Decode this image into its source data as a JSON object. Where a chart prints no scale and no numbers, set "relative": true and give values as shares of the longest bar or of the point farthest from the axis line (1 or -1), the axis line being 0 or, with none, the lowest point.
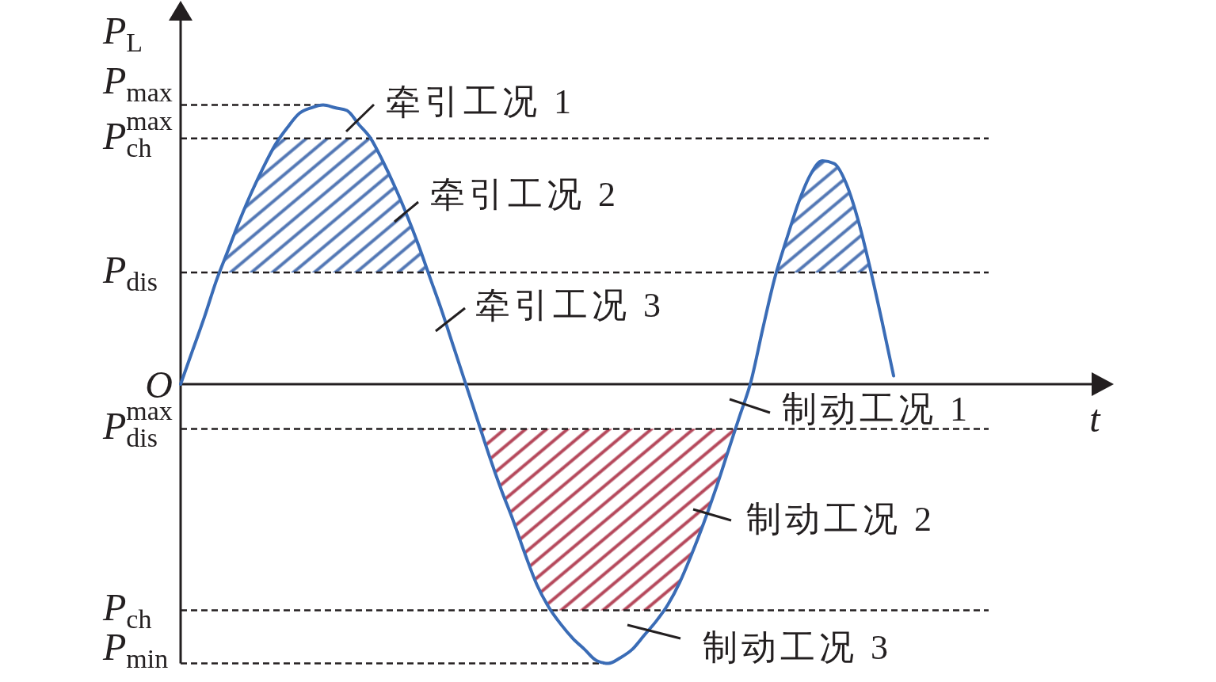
{
  "chart_data": {
    "type": "line",
    "relative": true,
    "xlabel": "t",
    "ylabel": "P$_{L}$",
    "categories": [
      null,
      null,
      null,
      null,
      null,
      null,
      null,
      null,
      null,
      null,
      null,
      null,
      null,
      null,
      null,
      null,
      null,
      null,
      null,
      null,
      null,
      null,
      null,
      null,
      null,
      null,
      null,
      null,
      null,
      null,
      null,
      null,
      null,
      null,
      null,
      null,
      null,
      null,
      null,
      null,
      null,
      null,
      null,
      null,
      null,
      null,
      null,
      null,
      null,
      null,
      null,
      null,
      null,
      null,
      null,
      null,
      null,
      null,
      null,
      null,
      null
    ],
    "color": "#3a6cb6",
    "values": [
      0,
      0.12,
      0.24,
      0.37,
      0.48,
      0.59,
      0.69,
      0.78,
      0.86,
      0.92,
      0.97,
      0.99,
      1,
      0.99,
      0.98,
      0.93,
      0.88,
      0.8,
      0.71,
      0.61,
      0.5,
      0.38,
      0.26,
      0.13,
      0,
      -0.13,
      -0.26,
      -0.38,
      -0.49,
      -0.61,
      -0.72,
      -0.8,
      -0.86,
      -0.91,
      -0.95,
      -0.99,
      -1,
      -0.98,
      -0.95,
      -0.9,
      -0.85,
      -0.79,
      -0.71,
      -0.61,
      -0.5,
      -0.38,
      -0.25,
      -0.12,
      0.01,
      0.2,
      0.38,
      0.52,
      0.65,
      0.75,
      0.8,
      0.79,
      0.72,
      0.59,
      0.42,
      0.23,
      0.03
    ],
    "bands": [
      {
        "axis": "y",
        "from": 0.4,
        "to": 0.88,
        "color": "#5277b5"
      },
      {
        "axis": "y",
        "from": -0.81,
        "to": -0.16,
        "color": "#b5485b"
      }
    ],
    "ref_lines": [
      {
        "axis": "y",
        "value": 1,
        "label": "P$_{max}$",
        "line_style": "dashed",
        "color": "#231f20"
      },
      {
        "axis": "y",
        "value": 0.88,
        "label": "P$^{max}$$_{ch}$",
        "line_style": "dashed",
        "color": "#231f20"
      },
      {
        "axis": "y",
        "value": 0.4,
        "label": "P$_{dis}$",
        "line_style": "dashed",
        "color": "#231f20"
      },
      {
        "axis": "y",
        "value": -0.16,
        "label": "P$^{max}$$_{dis}$",
        "line_style": "dashed",
        "color": "#231f20"
      },
      {
        "axis": "y",
        "value": -0.81,
        "label": "P$_{ch}$",
        "line_style": "dashed",
        "color": "#231f20"
      },
      {
        "axis": "y",
        "value": -1,
        "label": "P$_{min}$",
        "line_style": "dashed",
        "color": "#231f20"
      }
    ],
    "annotations": [
      "O",
      "牵引工况 1",
      "牵引工况 2",
      "牵引工况 3",
      "制动工况 1",
      "制动工况 2",
      "制动工况 3"
    ]
  }
}
